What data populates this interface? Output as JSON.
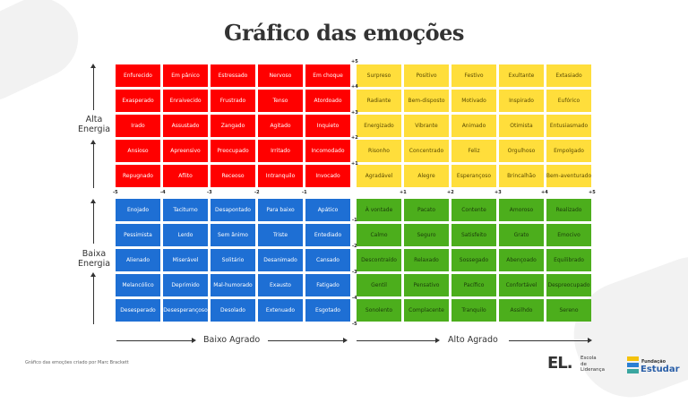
{
  "title": "Gráfico das emoções",
  "quadrants": {
    "red": [
      [
        "Enfurecido",
        "Em pânico",
        "Estressado",
        "Nervoso",
        "Em choque"
      ],
      [
        "Exasperado",
        "Enraivecido",
        "Frustrado",
        "Tenso",
        "Atordoado"
      ],
      [
        "Irado",
        "Assustado",
        "Zangado",
        "Agitado",
        "Inquieto"
      ],
      [
        "Ansioso",
        "Apreensivo",
        "Preocupado",
        "Irritado",
        "Incomodado"
      ],
      [
        "Repugnado",
        "Aflito",
        "Receoso",
        "Intranquilo",
        "Invocado"
      ]
    ],
    "yellow": [
      [
        "Surpreso",
        "Positivo",
        "Festivo",
        "Exultante",
        "Extasiado"
      ],
      [
        "Radiante",
        "Bem-disposto",
        "Motivado",
        "Inspirado",
        "Eufórico"
      ],
      [
        "Energizado",
        "Vibrante",
        "Animado",
        "Otimista",
        "Entusiasmado"
      ],
      [
        "Risonho",
        "Concentrado",
        "Feliz",
        "Orgulhoso",
        "Empolgado"
      ],
      [
        "Agradável",
        "Alegre",
        "Esperançoso",
        "Brincalhão",
        "Bem-aventurado"
      ]
    ],
    "blue": [
      [
        "Enojado",
        "Taciturno",
        "Desapontado",
        "Para baixo",
        "Apático"
      ],
      [
        "Pessimista",
        "Lerdo",
        "Sem ânimo",
        "Triste",
        "Entediado"
      ],
      [
        "Alienado",
        "Miserável",
        "Solitário",
        "Desanimado",
        "Cansado"
      ],
      [
        "Melancólico",
        "Deprimido",
        "Mal-humorado",
        "Exausto",
        "Fatigado"
      ],
      [
        "Desesperado",
        "Desesperançoso",
        "Desolado",
        "Extenuado",
        "Esgotado"
      ]
    ],
    "green": [
      [
        "À vontade",
        "Pacato",
        "Contente",
        "Amoroso",
        "Realizado"
      ],
      [
        "Calmo",
        "Seguro",
        "Satisfeito",
        "Grato",
        "Emocivo"
      ],
      [
        "Descontraído",
        "Relaxado",
        "Sossegado",
        "Abençoado",
        "Equilibrado"
      ],
      [
        "Gentil",
        "Pensativo",
        "Pacífico",
        "Confortável",
        "Despreocupado"
      ],
      [
        "Sonolento",
        "Complacente",
        "Tranquilo",
        "Assilhdo",
        "Sereno"
      ]
    ]
  },
  "ticks": {
    "top_y": [
      "+5",
      "+4",
      "+3",
      "+2",
      "+1"
    ],
    "left_x": [
      "-5",
      "-4",
      "-3",
      "-2",
      "-1"
    ],
    "right_x": [
      "+1",
      "+2",
      "+3",
      "+4",
      "+5"
    ],
    "bottom_y": [
      "-1",
      "-2",
      "-3",
      "-4",
      "-5"
    ]
  },
  "labels": {
    "high_energy": "Alta\nEnergia",
    "low_energy": "Baixa\nEnergia",
    "low_pleasant": "Baixo Agrado",
    "high_pleasant": "Alto Agrado"
  },
  "credit": "Gráfico das emoções criado por Marc Brackett",
  "logos": {
    "escola_mark": "EL.",
    "escola_text": "Escola\nde\nLiderança",
    "fundacao_small": "Fundação",
    "fundacao_big": "Estudar"
  },
  "colors": {
    "red": "#ff0000",
    "yellow": "#ffde3b",
    "blue": "#1e6fd4",
    "green": "#4cae1c"
  }
}
